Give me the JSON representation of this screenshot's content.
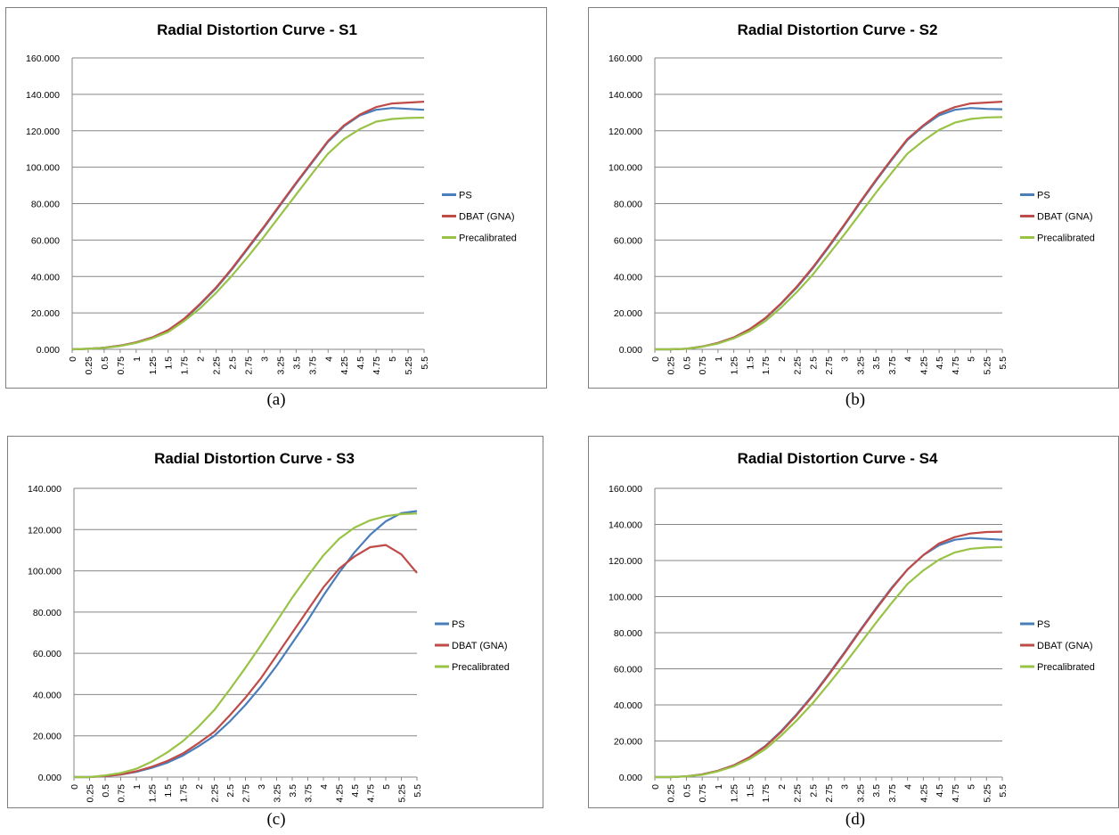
{
  "chart_data": [
    {
      "type": "line",
      "title": "Radial Distortion Curve - S1",
      "caption": "(a)",
      "x": [
        "0",
        "0.25",
        "0.5",
        "0.75",
        "1",
        "1.25",
        "1.5",
        "1.75",
        "2",
        "2.25",
        "2.5",
        "2.75",
        "3",
        "3.25",
        "3.5",
        "3.75",
        "4",
        "4.25",
        "4.5",
        "4.75",
        "5",
        "5.25",
        "5.5"
      ],
      "ylim": [
        0,
        160
      ],
      "yticks": [
        "0.000",
        "20.000",
        "40.000",
        "60.000",
        "80.000",
        "100.000",
        "120.000",
        "140.000",
        "160.000"
      ],
      "grid": true,
      "legend_position": "right",
      "series": [
        {
          "name": "PS",
          "color": "#4a7ebb",
          "values": [
            0,
            0.3,
            0.9,
            2,
            3.8,
            6.5,
            10.5,
            16.5,
            24.5,
            33.5,
            44,
            55.5,
            67,
            79,
            91,
            102.5,
            114,
            122.5,
            128.5,
            131.5,
            132.5,
            132,
            131.5
          ]
        },
        {
          "name": "DBAT (GNA)",
          "color": "#be4b48",
          "values": [
            0,
            0.3,
            0.9,
            2,
            3.8,
            6.5,
            10.5,
            16.8,
            25,
            34,
            44.5,
            56,
            67.5,
            79.5,
            91.5,
            103,
            114.5,
            123,
            129,
            133,
            135,
            135.5,
            136
          ]
        },
        {
          "name": "Precalibrated",
          "color": "#98c346",
          "values": [
            0,
            0.3,
            0.8,
            1.8,
            3.5,
            6,
            9.5,
            15.5,
            22.5,
            31,
            40.5,
            51,
            62,
            73.5,
            85,
            96.5,
            107.5,
            115.5,
            121,
            125,
            126.5,
            127,
            127.2
          ]
        }
      ]
    },
    {
      "type": "line",
      "title": "Radial Distortion Curve - S2",
      "caption": "(b)",
      "x": [
        "0",
        "0.25",
        "0.5",
        "0.75",
        "1",
        "1.25",
        "1.5",
        "1.75",
        "2",
        "2.25",
        "2.5",
        "2.75",
        "3",
        "3.25",
        "3.5",
        "3.75",
        "4",
        "4.25",
        "4.5",
        "4.75",
        "5",
        "5.25",
        "5.5"
      ],
      "ylim": [
        0,
        160
      ],
      "yticks": [
        "0.000",
        "20.000",
        "40.000",
        "60.000",
        "80.000",
        "100.000",
        "120.000",
        "140.000",
        "160.000"
      ],
      "grid": true,
      "legend_position": "right",
      "series": [
        {
          "name": "PS",
          "color": "#4a7ebb",
          "values": [
            0,
            0,
            0.3,
            1.5,
            3.5,
            6.5,
            11,
            17,
            25,
            34,
            44.5,
            56,
            68,
            80.5,
            92.5,
            104,
            115,
            122.5,
            128.5,
            131.5,
            132.5,
            132,
            131.8
          ]
        },
        {
          "name": "DBAT (GNA)",
          "color": "#be4b48",
          "values": [
            0,
            0,
            0.3,
            1.5,
            3.5,
            6.5,
            11,
            17.2,
            25.3,
            34.5,
            45,
            56.5,
            68.5,
            81,
            93,
            104.5,
            115.5,
            123,
            129.5,
            133,
            135,
            135.5,
            136
          ]
        },
        {
          "name": "Precalibrated",
          "color": "#98c346",
          "values": [
            0,
            0,
            0.3,
            1.4,
            3.2,
            6,
            10,
            15.5,
            23,
            31.5,
            41,
            52,
            63,
            74.5,
            86,
            97,
            107.5,
            114.5,
            120.5,
            124.5,
            126.5,
            127.3,
            127.5
          ]
        }
      ]
    },
    {
      "type": "line",
      "title": "Radial Distortion Curve - S3",
      "caption": "(c)",
      "x": [
        "0",
        "0.25",
        "0.5",
        "0.75",
        "1",
        "1.25",
        "1.5",
        "1.75",
        "2",
        "2.25",
        "2.5",
        "2.75",
        "3",
        "3.25",
        "3.5",
        "3.75",
        "4",
        "4.25",
        "4.5",
        "4.75",
        "5",
        "5.25",
        "5.5"
      ],
      "ylim": [
        0,
        140
      ],
      "yticks": [
        "0.000",
        "20.000",
        "40.000",
        "60.000",
        "80.000",
        "100.000",
        "120.000",
        "140.000"
      ],
      "grid": true,
      "legend_position": "right",
      "series": [
        {
          "name": "PS",
          "color": "#4a7ebb",
          "values": [
            0,
            0,
            0.5,
            1.2,
            2.5,
            4.5,
            7,
            10.5,
            15,
            20,
            27,
            35,
            44,
            54,
            65,
            76,
            88,
            99,
            109,
            117.5,
            124,
            128,
            129
          ]
        },
        {
          "name": "DBAT (GNA)",
          "color": "#be4b48",
          "values": [
            0,
            0,
            0.5,
            1.2,
            2.8,
            5,
            7.8,
            11.5,
            16.5,
            22,
            30,
            38.5,
            48,
            59,
            70,
            81,
            92,
            101,
            107,
            111.5,
            112.5,
            108,
            99
          ]
        },
        {
          "name": "Precalibrated",
          "color": "#98c346",
          "values": [
            0,
            0,
            0.8,
            2,
            4,
            7.5,
            12,
            17.5,
            24.5,
            32.5,
            42.5,
            53,
            64,
            75.5,
            87,
            97.5,
            107.5,
            115.5,
            121,
            124.5,
            126.5,
            127.5,
            127.8
          ]
        }
      ]
    },
    {
      "type": "line",
      "title": "Radial Distortion Curve - S4",
      "caption": "(d)",
      "x": [
        "0",
        "0.25",
        "0.5",
        "0.75",
        "1",
        "1.25",
        "1.5",
        "1.75",
        "2",
        "2.25",
        "2.5",
        "2.75",
        "3",
        "3.25",
        "3.5",
        "3.75",
        "4",
        "4.25",
        "4.5",
        "4.75",
        "5",
        "5.25",
        "5.5"
      ],
      "ylim": [
        0,
        160
      ],
      "yticks": [
        "0.000",
        "20.000",
        "40.000",
        "60.000",
        "80.000",
        "100.000",
        "120.000",
        "140.000",
        "160.000"
      ],
      "grid": true,
      "legend_position": "right",
      "series": [
        {
          "name": "PS",
          "color": "#4a7ebb",
          "values": [
            0,
            0,
            0.4,
            1.5,
            3.5,
            6.5,
            11,
            17.3,
            25.5,
            35,
            45.5,
            57,
            69,
            81.5,
            93.5,
            105,
            115,
            123,
            128.5,
            131.5,
            132.5,
            132,
            131.5
          ]
        },
        {
          "name": "DBAT (GNA)",
          "color": "#be4b48",
          "values": [
            0,
            0,
            0.4,
            1.5,
            3.5,
            6.5,
            11,
            17,
            25,
            34.5,
            45,
            56.5,
            68.5,
            81,
            93,
            104.5,
            115,
            123,
            129.5,
            133,
            135,
            135.8,
            136
          ]
        },
        {
          "name": "Precalibrated",
          "color": "#98c346",
          "values": [
            0,
            0,
            0.4,
            1.3,
            3.2,
            6,
            10,
            15.5,
            23,
            31.5,
            41,
            51.5,
            62.5,
            74,
            85.5,
            96.5,
            107,
            114.5,
            120.5,
            124.5,
            126.5,
            127.2,
            127.5
          ]
        }
      ]
    }
  ]
}
